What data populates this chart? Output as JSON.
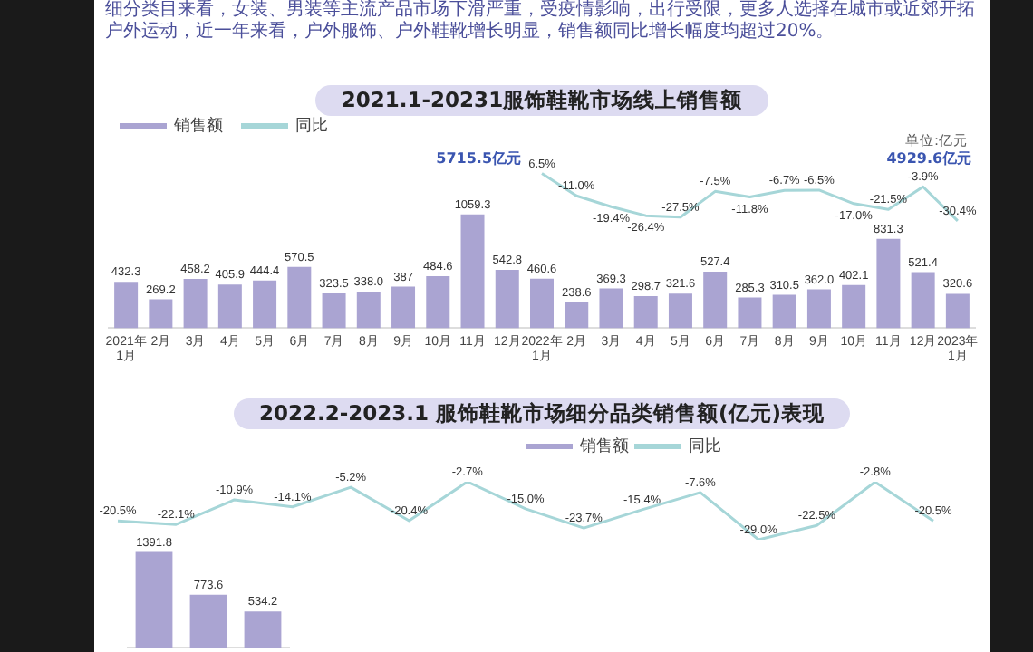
{
  "chart_data": [
    {
      "type": "bar",
      "title": "2021.1-20231服饰鞋靴市场线上销售额",
      "legend": "top left",
      "grid": false,
      "marker": "none",
      "tick_labels": "x",
      "annotations": [
        "细分类目来看，女装、男装等主流产品市场下滑严重，受疫情影响，出行受限，更多人选择在城市或近郊开拓户外运动，近一年来看，户外服饰、户外鞋靴增长明显，销售额同比增长幅度均超过20%。",
        "单位:亿元",
        "5715.5亿元",
        "4929.6亿元"
      ],
      "categories": [
        "2021年\n1月",
        "2月",
        "3月",
        "4月",
        "5月",
        "6月",
        "7月",
        "8月",
        "9月",
        "10月",
        "11月",
        "12月",
        "2022年\n1月",
        "2月",
        "3月",
        "4月",
        "5月",
        "6月",
        "7月",
        "8月",
        "9月",
        "10月",
        "11月",
        "12月",
        "2023年\n1月"
      ],
      "series": [
        {
          "name": "销售额",
          "type": "bar",
          "color": "#aaa4d2",
          "values": [
            432.3,
            269.2,
            458.2,
            405.9,
            444.4,
            570.5,
            323.5,
            338.0,
            387,
            484.6,
            1059.3,
            542.8,
            460.6,
            238.6,
            369.3,
            298.7,
            321.6,
            527.4,
            285.3,
            310.5,
            362.0,
            402.1,
            831.3,
            521.4,
            320.6
          ],
          "value_labels": [
            "432.3",
            "269.2",
            "458.2",
            "405.9",
            "444.4",
            "570.5",
            "323.5",
            "338.0",
            "387",
            "484.6",
            "1059.3",
            "542.8",
            "460.6",
            "238.6",
            "369.3",
            "298.7",
            "321.6",
            "527.4",
            "285.3",
            "310.5",
            "362.0",
            "402.1",
            "831.3",
            "521.4",
            "320.6"
          ]
        },
        {
          "name": "同比",
          "type": "line",
          "axis": "y2",
          "color": "#a6d6d8",
          "values": [
            null,
            null,
            null,
            null,
            null,
            null,
            null,
            null,
            null,
            null,
            null,
            null,
            6.5,
            -11.0,
            -19.4,
            -26.4,
            -27.5,
            -7.5,
            -11.8,
            -6.7,
            -6.5,
            -17.0,
            -21.5,
            -3.9,
            -30.4
          ],
          "value_labels": [
            null,
            null,
            null,
            null,
            null,
            null,
            null,
            null,
            null,
            null,
            null,
            null,
            "6.5%",
            "-11.0%",
            "-19.4%",
            "-26.4%",
            "-27.5%",
            "-7.5%",
            "-11.8%",
            "-6.7%",
            "-6.5%",
            "-17.0%",
            "-21.5%",
            "-3.9%",
            "-30.4%"
          ]
        }
      ]
    },
    {
      "type": "line",
      "title": "2022.2-2023.1 服饰鞋靴市场细分品类销售额(亿元)表现",
      "legend": "top",
      "grid": false,
      "marker": "none",
      "tick_labels": false,
      "categories": [
        null,
        null,
        null,
        null,
        null,
        null,
        null,
        null,
        null,
        null,
        null,
        null,
        null,
        null,
        null
      ],
      "series": [
        {
          "name": "同比",
          "color": "#a6d6d8",
          "values": [
            -20.5,
            -22.1,
            -10.9,
            -14.1,
            -5.2,
            -20.4,
            -2.7,
            -15.0,
            -23.7,
            -15.4,
            -7.6,
            -29.0,
            -22.5,
            -2.8,
            -20.5
          ],
          "value_labels": [
            "-20.5%",
            "-22.1%",
            "-10.9%",
            "-14.1%",
            "-5.2%",
            "-20.4%",
            "-2.7%",
            "-15.0%",
            "-23.7%",
            "-15.4%",
            "-7.6%",
            "-29.0%",
            "-22.5%",
            "-2.8%",
            "-20.5%"
          ]
        }
      ]
    },
    {
      "type": "bar",
      "legend": "top",
      "grid": false,
      "tick_labels": false,
      "categories": [
        null,
        null,
        null
      ],
      "series": [
        {
          "name": "销售额",
          "color": "#aaa4d2",
          "values": [
            1391.8,
            773.6,
            534.2
          ],
          "value_labels": [
            "1391.8",
            "773.6",
            "534.2"
          ]
        }
      ]
    }
  ]
}
